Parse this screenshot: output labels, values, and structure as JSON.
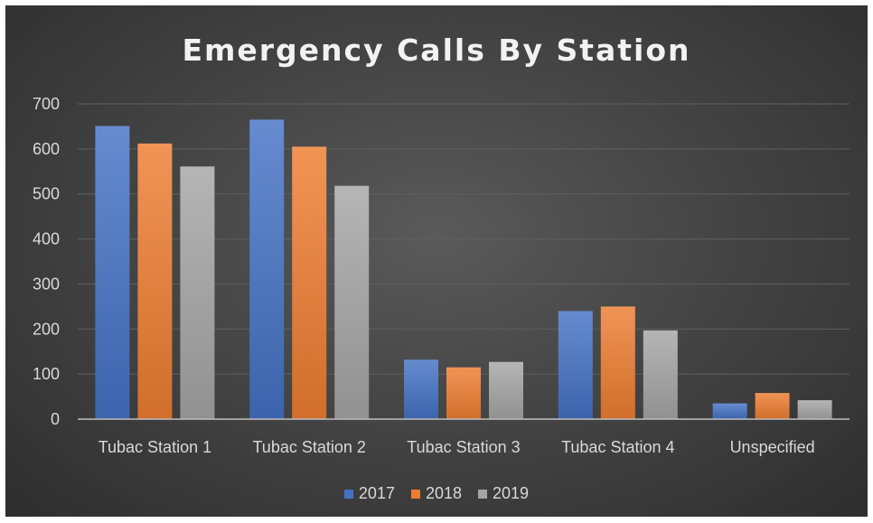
{
  "chart_data": {
    "type": "bar",
    "title": "Emergency Calls By Station",
    "xlabel": "",
    "ylabel": "",
    "categories": [
      "Tubac Station 1",
      "Tubac Station 2",
      "Tubac Station 3",
      "Tubac Station 4",
      "Unspecified"
    ],
    "series": [
      {
        "name": "2017",
        "color": "#4472c4",
        "values": [
          651,
          665,
          132,
          240,
          35
        ]
      },
      {
        "name": "2018",
        "color": "#ed7d31",
        "values": [
          612,
          605,
          115,
          250,
          58
        ]
      },
      {
        "name": "2019",
        "color": "#a5a5a5",
        "values": [
          561,
          518,
          127,
          197,
          42
        ]
      }
    ],
    "ylim": [
      0,
      700
    ],
    "yticks": [
      0,
      100,
      200,
      300,
      400,
      500,
      600,
      700
    ],
    "grid": true,
    "legend_position": "bottom"
  }
}
